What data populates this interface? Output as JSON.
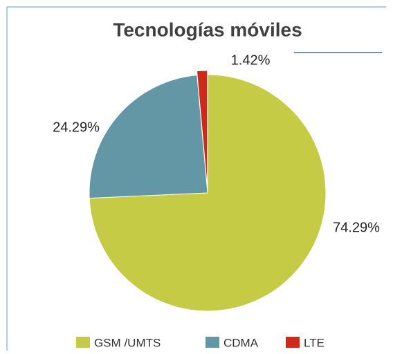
{
  "chart_data": {
    "type": "pie",
    "title": "Tecnologías móviles",
    "categories": [
      "GSM /UMTS",
      "CDMA",
      "LTE"
    ],
    "values": [
      74.29,
      24.29,
      1.42
    ],
    "value_labels": [
      "74.29%",
      "24.29%",
      "1.42%"
    ],
    "colors": [
      "#c5cb45",
      "#6497a5",
      "#cc2a1a"
    ]
  }
}
